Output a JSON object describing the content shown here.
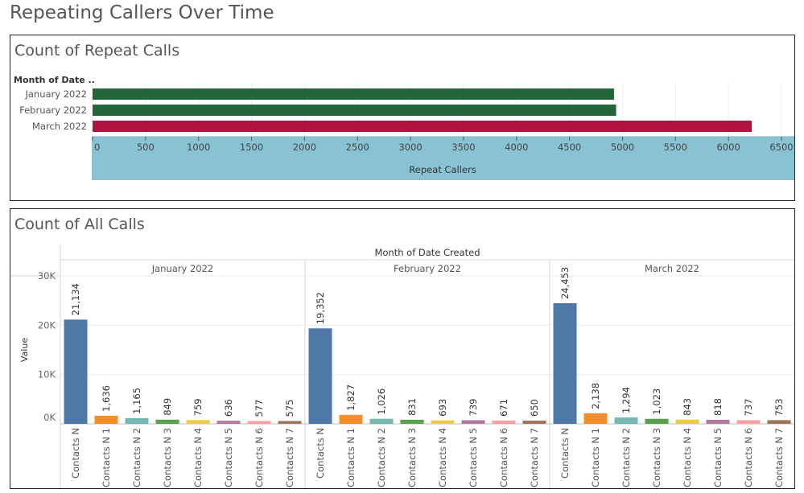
{
  "dashboard": {
    "title": "Repeating Callers Over Time"
  },
  "repeat_panel": {
    "title": "Count of Repeat Calls"
  },
  "all_panel": {
    "title": "Count of All Calls"
  },
  "chart_data": [
    {
      "type": "bar",
      "orientation": "horizontal",
      "title": "Count of Repeat Calls",
      "row_header": "Month of Date ..",
      "xlabel": "Repeat Callers",
      "categories": [
        "January 2022",
        "February 2022",
        "March 2022"
      ],
      "values": [
        4920,
        4940,
        6220
      ],
      "colors": [
        "#23663a",
        "#23663a",
        "#b0133f"
      ],
      "xlim": [
        0,
        6500
      ],
      "xticks": [
        0,
        500,
        1000,
        1500,
        2000,
        2500,
        3000,
        3500,
        4000,
        4500,
        5000,
        5500,
        6000,
        6500
      ],
      "axis_band_color": "#89c3d3",
      "grid": true
    },
    {
      "type": "bar",
      "title": "Count of All Calls",
      "column_header": "Month of Date Created",
      "ylabel": "Value",
      "ylim": [
        0,
        30000
      ],
      "yticks": [
        0,
        10000,
        20000,
        30000
      ],
      "ytick_labels": [
        "0K",
        "10K",
        "20K",
        "30K"
      ],
      "categories": [
        "Contacts N",
        "Contacts N 1",
        "Contacts N 2",
        "Contacts N 3",
        "Contacts N 4",
        "Contacts N 5",
        "Contacts N 6",
        "Contacts N 7"
      ],
      "colors": [
        "#4e79a7",
        "#f28e2b",
        "#76b7b2",
        "#59a14f",
        "#edc948",
        "#b07aa1",
        "#ff9da7",
        "#9c755f"
      ],
      "panels": [
        {
          "name": "January 2022",
          "values": [
            21134,
            1636,
            1165,
            849,
            759,
            636,
            577,
            575
          ],
          "labels": [
            "21,134",
            "1,636",
            "1,165",
            "849",
            "759",
            "636",
            "577",
            "575"
          ]
        },
        {
          "name": "February 2022",
          "values": [
            19352,
            1827,
            1026,
            831,
            693,
            739,
            671,
            650
          ],
          "labels": [
            "19,352",
            "1,827",
            "1,026",
            "831",
            "693",
            "739",
            "671",
            "650"
          ]
        },
        {
          "name": "March 2022",
          "values": [
            24453,
            2138,
            1294,
            1023,
            843,
            818,
            737,
            753
          ],
          "labels": [
            "24,453",
            "2,138",
            "1,294",
            "1,023",
            "843",
            "818",
            "737",
            "753"
          ]
        }
      ],
      "grid": true
    }
  ]
}
